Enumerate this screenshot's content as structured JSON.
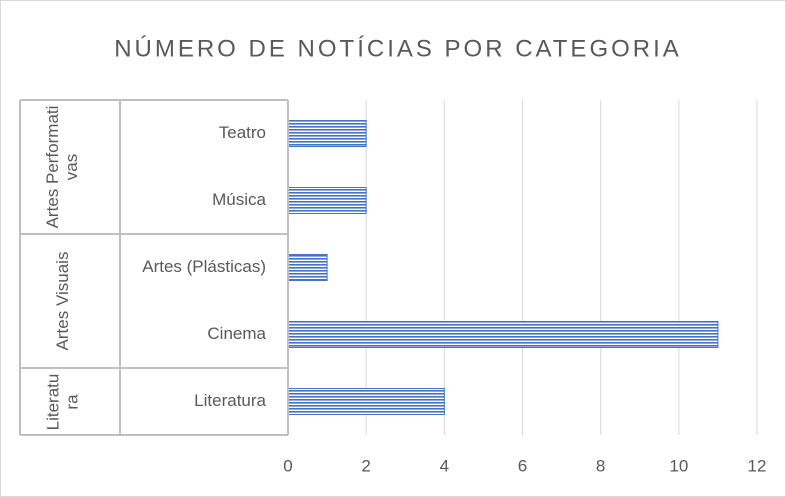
{
  "chart_data": {
    "type": "bar",
    "orientation": "horizontal",
    "title": "NÚMERO DE NOTÍCIAS POR CATEGORIA",
    "groups": [
      {
        "label": "Artes Performativas",
        "categories": [
          "Teatro",
          "Música"
        ],
        "values": [
          2,
          2
        ]
      },
      {
        "label": "Artes Visuais",
        "categories": [
          "Artes (Plásticas)",
          "Cinema"
        ],
        "values": [
          1,
          11
        ]
      },
      {
        "label": "Literatura",
        "categories": [
          "Literatura"
        ],
        "values": [
          4
        ]
      }
    ],
    "color": "#4472c4",
    "xlim": [
      0,
      12
    ],
    "xticks": [
      0,
      2,
      4,
      6,
      8,
      10,
      12
    ],
    "grid": true
  }
}
